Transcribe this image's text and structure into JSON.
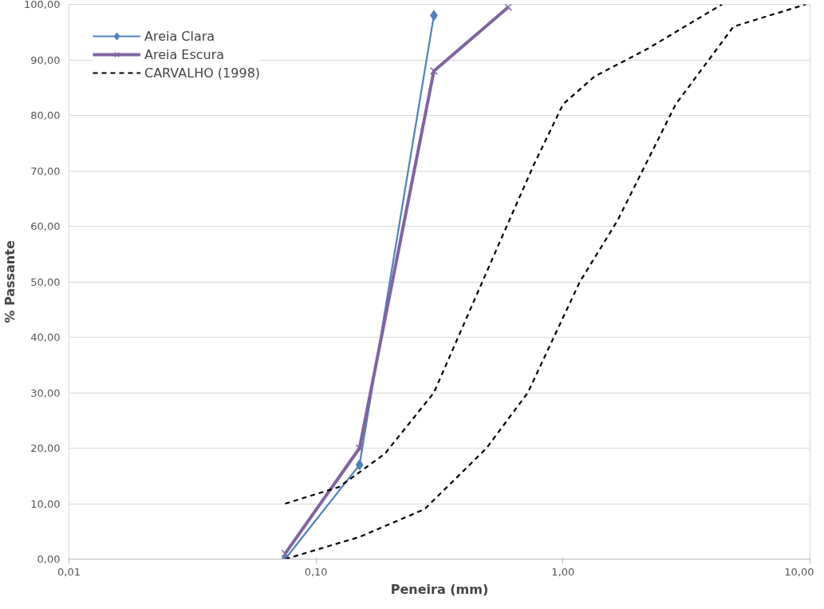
{
  "chart_data": {
    "type": "line",
    "xlabel": "Peneira (mm)",
    "ylabel": "% Passante",
    "log": "x",
    "grid": "y",
    "legend": "top left",
    "xlim": [
      0.01,
      10
    ],
    "xticks": [
      {
        "value": 0.01,
        "label": "0,01"
      },
      {
        "value": 0.1,
        "label": "0,10"
      },
      {
        "value": 1,
        "label": "1,00"
      },
      {
        "value": 10,
        "label": "10,00"
      }
    ],
    "ylim": [
      0,
      100
    ],
    "yticks": [
      {
        "value": 0,
        "label": "0,00"
      },
      {
        "value": 10,
        "label": "10,00"
      },
      {
        "value": 20,
        "label": "20,00"
      },
      {
        "value": 30,
        "label": "30,00"
      },
      {
        "value": 40,
        "label": "40,00"
      },
      {
        "value": 50,
        "label": "50,00"
      },
      {
        "value": 60,
        "label": "60,00"
      },
      {
        "value": 70,
        "label": "70,00"
      },
      {
        "value": 80,
        "label": "80,00"
      },
      {
        "value": 90,
        "label": "90,00"
      },
      {
        "value": 100,
        "label": "100,00"
      }
    ],
    "series": [
      {
        "name": "Areia Clara",
        "color": "#4f81bd",
        "marker": "diamond",
        "line_style": "solid",
        "x": [
          0.075,
          0.15,
          0.3
        ],
        "values": [
          0,
          17,
          98
        ]
      },
      {
        "name": "Areia Escura",
        "color": "#8064a2",
        "marker": "cross",
        "line_style": "solid",
        "x": [
          0.075,
          0.15,
          0.3,
          0.6
        ],
        "values": [
          1,
          20,
          88,
          99.5
        ]
      },
      {
        "name": "CARVALHO (1998)",
        "color": "#000000",
        "marker": "none",
        "line_style": "dashed",
        "x": [
          0.075,
          0.124,
          0.19,
          0.3,
          0.54,
          0.76,
          1.0,
          1.34,
          2.2,
          4.4
        ],
        "values": [
          10,
          13,
          19,
          30,
          56,
          71,
          82,
          87,
          92,
          100
        ]
      },
      {
        "color": "#000000",
        "marker": "none",
        "line_style": "dashed",
        "x": [
          0.075,
          0.15,
          0.275,
          0.49,
          0.72,
          1.17,
          1.66,
          2.86,
          4.9,
          9.6
        ],
        "values": [
          0,
          4,
          9,
          20,
          30,
          50,
          61,
          82,
          96,
          100
        ]
      }
    ]
  }
}
